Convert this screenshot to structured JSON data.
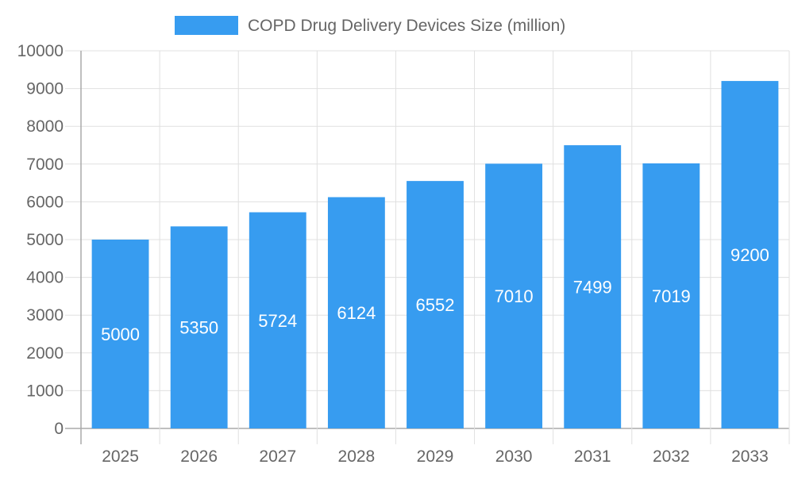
{
  "chart_data": {
    "type": "bar",
    "title": "",
    "xlabel": "",
    "ylabel": "",
    "categories": [
      "2025",
      "2026",
      "2027",
      "2028",
      "2029",
      "2030",
      "2031",
      "2032",
      "2033"
    ],
    "series": [
      {
        "name": "COPD Drug Delivery Devices Size (million)",
        "values": [
          5000,
          5350,
          5724,
          6124,
          6552,
          7010,
          7499,
          7019,
          9200
        ],
        "color": "#379cf0"
      }
    ],
    "ylim": [
      0,
      10000
    ],
    "yticks": [
      0,
      1000,
      2000,
      3000,
      4000,
      5000,
      6000,
      7000,
      8000,
      9000,
      10000
    ],
    "grid": true,
    "legend_position": "top",
    "data_labels": true
  }
}
